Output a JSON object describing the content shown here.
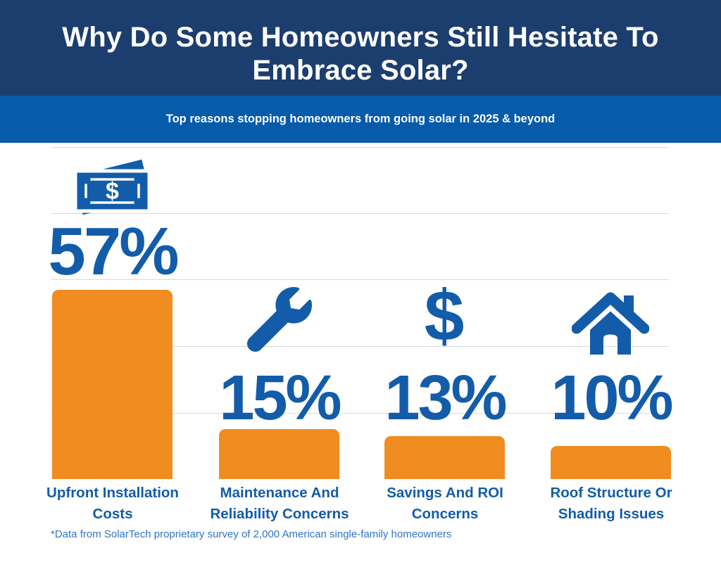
{
  "header": {
    "title": "Why Do Some Homeowners Still Hesitate To Embrace Solar?",
    "subtitle": "Top reasons stopping homeowners from going solar in 2025 & beyond"
  },
  "footnote": "*Data from SolarTech proprietary survey of 2,000 American single-family homeowners",
  "colors": {
    "header_navy": "#1C3E6E",
    "band_blue": "#065BAA",
    "accent_blue": "#135CA9",
    "bar_orange": "#F08C20",
    "gridline_gray": "#DADADA",
    "footnote_blue": "#2F74C4",
    "background": "#FFFFFF"
  },
  "chart_data": {
    "type": "bar",
    "title": "Why Do Some Homeowners Still Hesitate To Embrace Solar?",
    "subtitle": "Top reasons stopping homeowners from going solar in 2025 & beyond",
    "categories": [
      "Upfront Installation Costs",
      "Maintenance And Reliability Concerns",
      "Savings And ROI Concerns",
      "Roof Structure Or Shading Issues"
    ],
    "values": [
      57,
      15,
      13,
      10
    ],
    "value_labels": [
      "57%",
      "15%",
      "13%",
      "10%"
    ],
    "unit": "%",
    "xlabel": "",
    "ylabel": "",
    "ylim": [
      0,
      100
    ],
    "gridline_values": [
      20,
      40,
      60,
      80,
      100
    ],
    "grid": "horizontal",
    "legend": "none",
    "bar_color": "#F08C20",
    "icons": [
      "money-bills",
      "wrench",
      "dollar-sign",
      "house"
    ]
  },
  "columns": [
    {
      "pct": "57%",
      "label_line1": "Upfront Installation",
      "label_line2": "Costs",
      "icon": "money-bills"
    },
    {
      "pct": "15%",
      "label_line1": "Maintenance And",
      "label_line2": "Reliability Concerns",
      "icon": "wrench"
    },
    {
      "pct": "13%",
      "label_line1": "Savings And ROI",
      "label_line2": "Concerns",
      "icon": "dollar-sign"
    },
    {
      "pct": "10%",
      "label_line1": "Roof Structure Or",
      "label_line2": "Shading Issues",
      "icon": "house"
    }
  ],
  "glyphs": {
    "dollar": "$",
    "money_bill_dollar": "$"
  }
}
